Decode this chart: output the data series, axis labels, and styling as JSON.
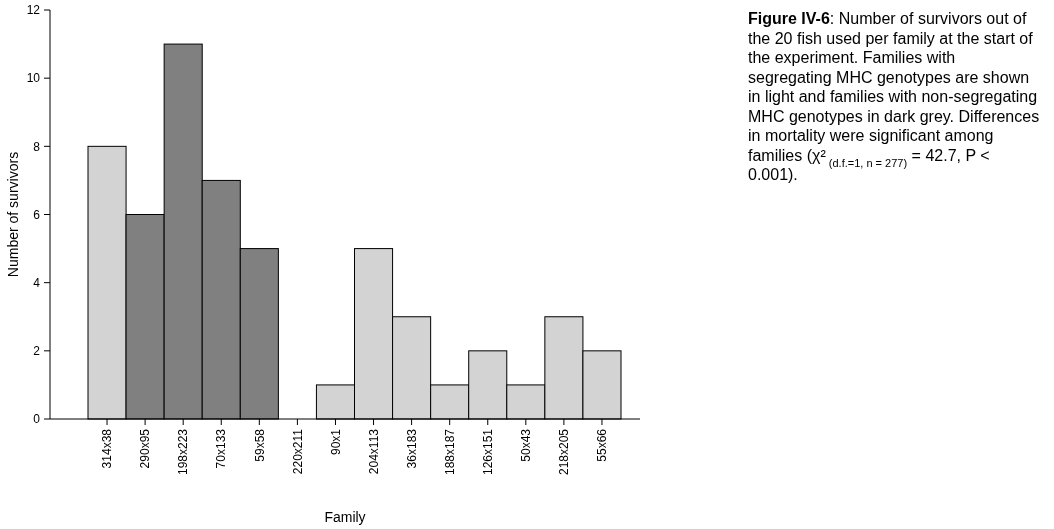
{
  "chart_data": {
    "type": "bar",
    "xlabel": "Family",
    "ylabel": "Number of survivors",
    "categories": [
      "314x38",
      "290x95",
      "198x223",
      "70x133",
      "59x58",
      "220x211",
      "90x1",
      "204x113",
      "36x183",
      "188x187",
      "126x151",
      "50x43",
      "218x205",
      "55x66"
    ],
    "values": [
      8,
      6,
      11,
      7,
      5,
      0,
      1,
      5,
      3,
      1,
      2,
      1,
      3,
      2
    ],
    "colors": [
      "#d3d3d3",
      "#808080",
      "#808080",
      "#808080",
      "#808080",
      "#808080",
      "#d3d3d3",
      "#d3d3d3",
      "#d3d3d3",
      "#d3d3d3",
      "#d3d3d3",
      "#d3d3d3",
      "#d3d3d3",
      "#d3d3d3"
    ],
    "ylim": [
      0,
      12
    ],
    "yticks": [
      0,
      2,
      4,
      6,
      8,
      10,
      12
    ],
    "grid": false,
    "annotations": [
      "Figure IV-6: Number of survivors out of the 20 fish used per family at the start of the experiment. Families with segregating MHC genotypes are shown in light and families with non-segregating MHC genotypes in dark grey. Differences in mortality were significant among families (χ² $_{(d.f.=1, n = 277)}$ = 42.7, P < 0.001)."
    ]
  }
}
